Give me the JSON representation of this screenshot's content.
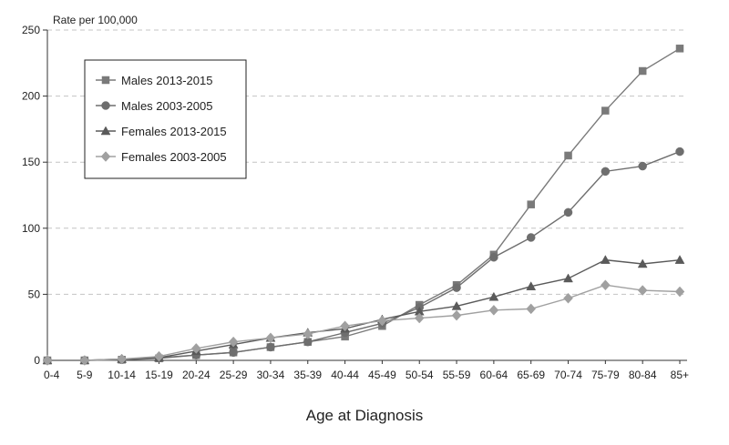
{
  "chart_data": {
    "type": "line",
    "ylabel": "Rate per 100,000",
    "xlabel": "Age at Diagnosis",
    "categories": [
      "0-4",
      "5-9",
      "10-14",
      "15-19",
      "20-24",
      "25-29",
      "30-34",
      "35-39",
      "40-44",
      "45-49",
      "50-54",
      "55-59",
      "60-64",
      "65-69",
      "70-74",
      "75-79",
      "80-84",
      "85+"
    ],
    "ylim": [
      0,
      250
    ],
    "yticks": [
      0,
      50,
      100,
      150,
      200,
      250
    ],
    "grid": "horizontal dashed",
    "legend_position": "top-left",
    "series": [
      {
        "name": "Males 2013-2015",
        "marker": "square",
        "color": "#7a7a7a",
        "values": [
          0,
          0,
          0.5,
          1.5,
          4,
          6,
          10,
          14,
          18,
          26,
          42,
          57,
          80,
          118,
          155,
          189,
          219,
          236
        ]
      },
      {
        "name": "Males 2003-2005",
        "marker": "circle",
        "color": "#6e6e6e",
        "values": [
          0,
          0,
          0.5,
          2,
          4,
          6,
          10,
          14,
          21,
          28,
          40,
          55,
          78,
          93,
          112,
          143,
          147,
          158
        ]
      },
      {
        "name": "Females 2013-2015",
        "marker": "triangle",
        "color": "#5a5a5a",
        "values": [
          0,
          0,
          1,
          2,
          7,
          12,
          17,
          21,
          24,
          31,
          37,
          41,
          48,
          56,
          62,
          76,
          73,
          76
        ]
      },
      {
        "name": "Females 2003-2005",
        "marker": "diamond",
        "color": "#a0a0a0",
        "values": [
          0,
          0,
          1,
          3,
          9,
          14,
          17,
          20,
          26,
          30,
          32,
          34,
          38,
          39,
          47,
          57,
          53,
          52
        ]
      }
    ]
  }
}
